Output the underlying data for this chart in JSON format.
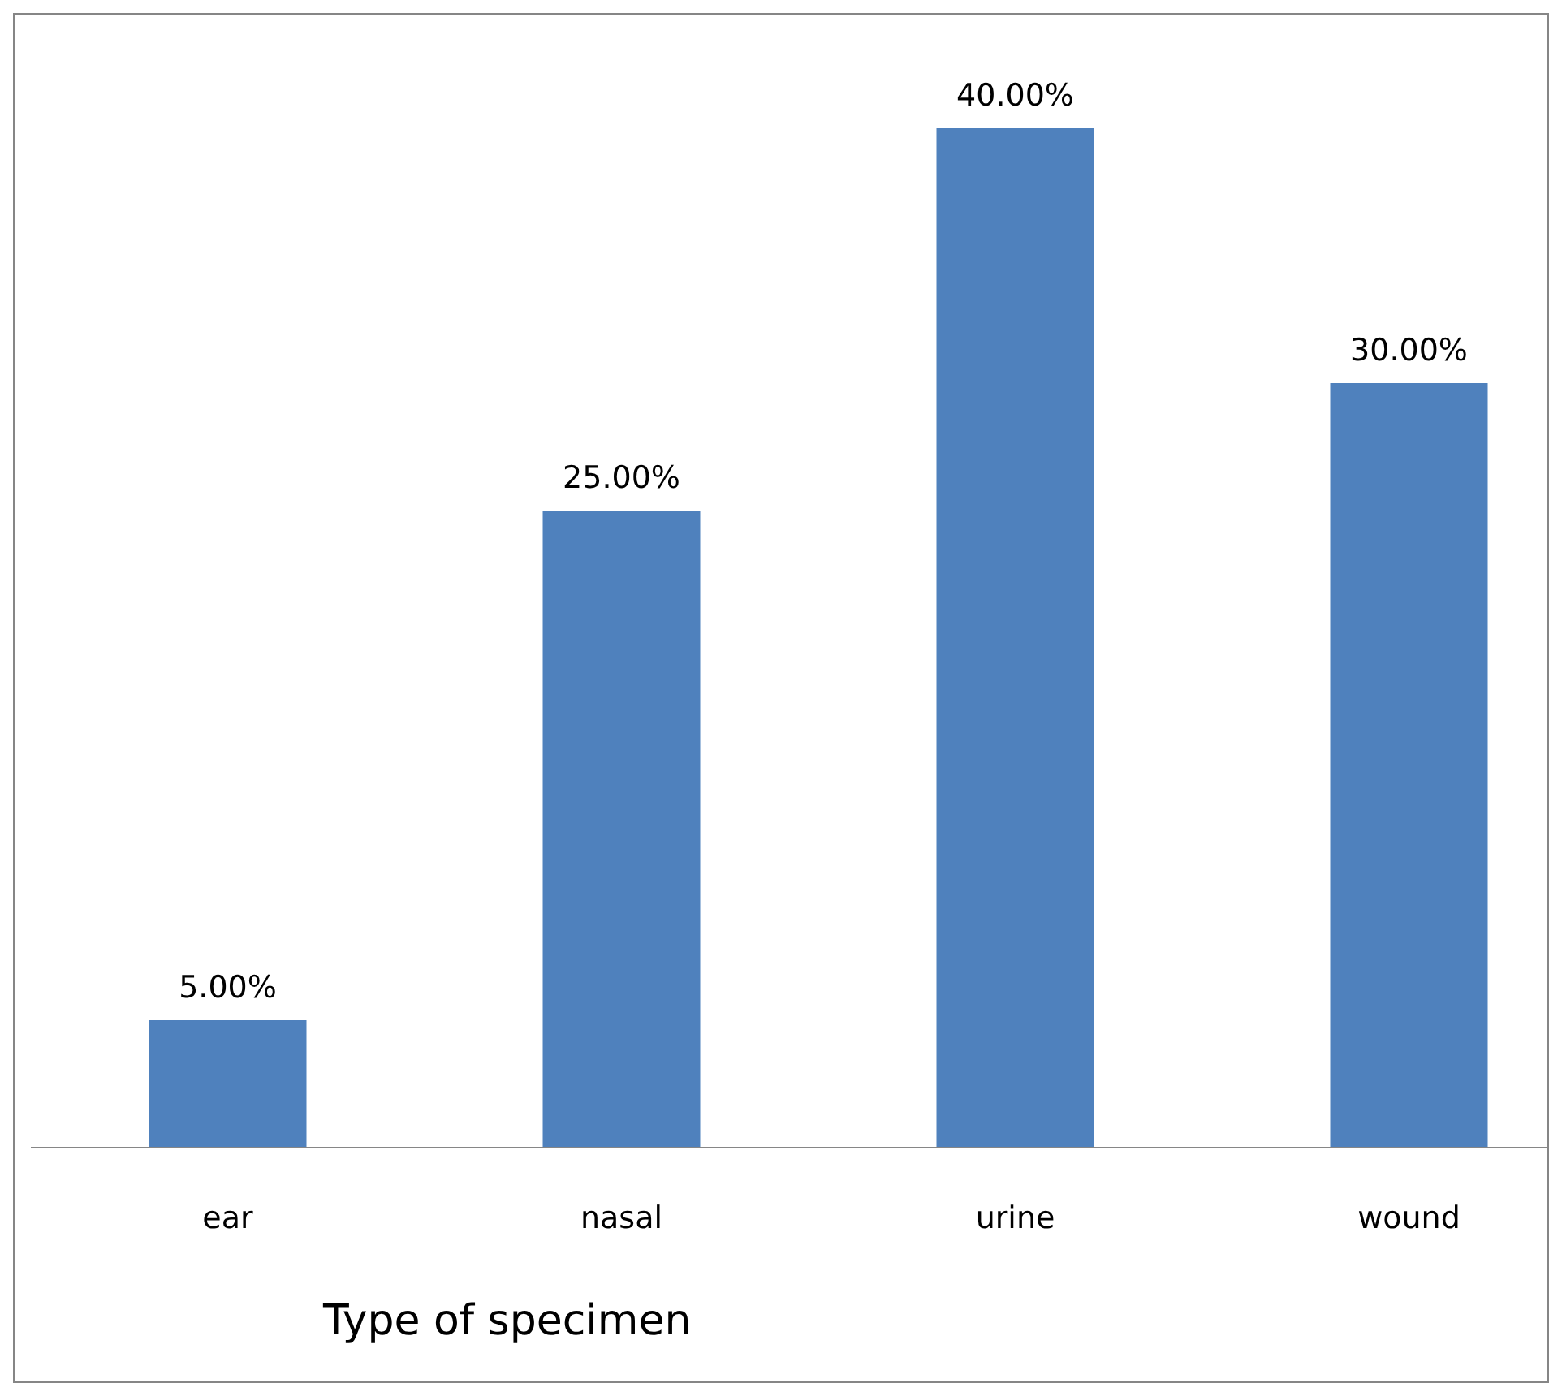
{
  "chart_data": {
    "type": "bar",
    "xlabel": "Type of specimen",
    "categories": [
      "ear",
      "nasal",
      "urine",
      "wound"
    ],
    "values": [
      5,
      25,
      40,
      30
    ],
    "color": "#4f81bd",
    "value_labels": [
      "5.00%",
      "25.00%",
      "40.00%",
      "30.00%"
    ],
    "grid": false,
    "legend": false
  }
}
